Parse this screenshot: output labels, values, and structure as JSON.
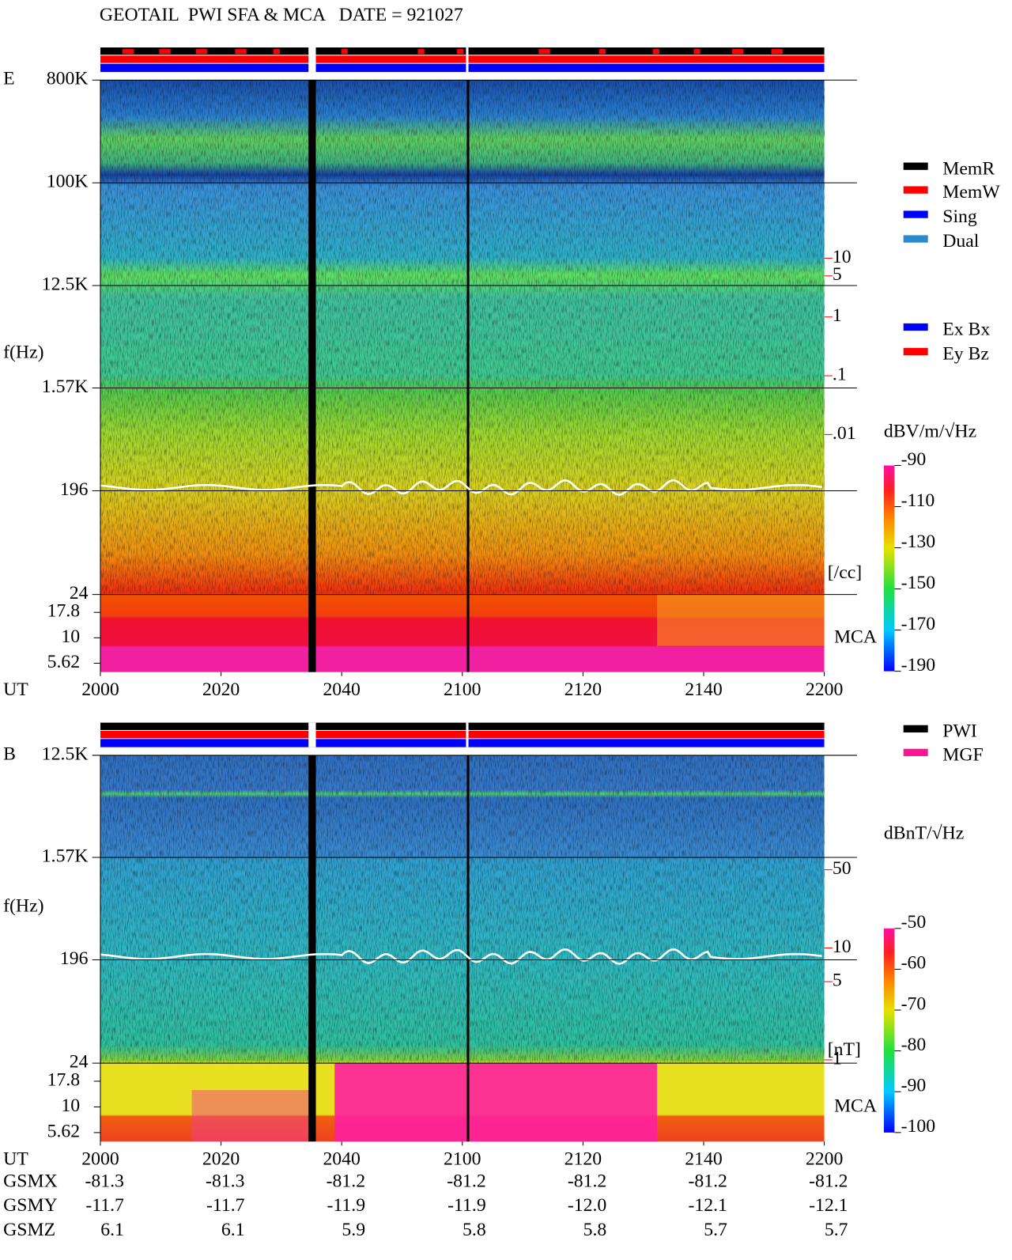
{
  "title": "GEOTAIL  PWI SFA & MCA   DATE = 921027",
  "chart_data": [
    {
      "type": "spectrogram",
      "panel": "E",
      "ylabel": "f(Hz)",
      "xlabel": "UT",
      "mca_label": "MCA",
      "ylog": true,
      "ylim": [
        24,
        800000
      ],
      "yticks": [
        {
          "value": 800000,
          "label": "800K"
        },
        {
          "value": 100000,
          "label": "100K"
        },
        {
          "value": 12500,
          "label": "12.5K"
        },
        {
          "value": 1570,
          "label": "1.57K"
        },
        196,
        24
      ],
      "mca_ylim": [
        4.6,
        26.7
      ],
      "mca_yticks": [
        17.8,
        10,
        5.62
      ],
      "xticks": [
        "2000",
        "2020",
        "2040",
        "2100",
        "2120",
        "2140",
        "2200"
      ],
      "y2lim": [
        1.9e-05,
        10700
      ],
      "y2ticks": [
        10,
        5,
        1,
        {
          "value": 0.1,
          "label": ".1"
        },
        {
          "value": 0.01,
          "label": ".01"
        }
      ],
      "y2label": "[/cc]",
      "y2color": "#ff0000",
      "clim": [
        -190,
        -90
      ],
      "cticks": [
        -90,
        -110,
        -130,
        -150,
        -170,
        -190
      ],
      "clabel": "dBV/m/√Hz",
      "legend": [
        {
          "name": "MemR",
          "color": "#000000"
        },
        {
          "name": "MemW",
          "color": "#ff0000"
        },
        {
          "name": "Sing",
          "color": "#0000ff"
        },
        {
          "name": "Dual",
          "color": "#2a8ad0"
        }
      ],
      "legend2": [
        {
          "name": "Ex Bx",
          "color": "#0000ff"
        },
        {
          "name": "Ey Bz",
          "color": "#ff0000"
        }
      ]
    },
    {
      "type": "spectrogram",
      "panel": "B",
      "ylabel": "f(Hz)",
      "xlabel": "UT",
      "mca_label": "MCA",
      "ylog": true,
      "ylim": [
        24,
        12500
      ],
      "yticks": [
        {
          "value": 12500,
          "label": "12.5K"
        },
        {
          "value": 1570,
          "label": "1.57K"
        },
        196,
        24
      ],
      "mca_ylim": [
        4.6,
        26.7
      ],
      "mca_yticks": [
        17.8,
        10,
        5.62
      ],
      "xticks": [
        "2000",
        "2020",
        "2040",
        "2100",
        "2120",
        "2140",
        "2200"
      ],
      "y2lim": [
        0.935,
        527
      ],
      "y2ticks": [
        50,
        10,
        5,
        1
      ],
      "y2label": "[nT]",
      "y2color": "#ff0000",
      "clim": [
        -100,
        -50
      ],
      "cticks": [
        -50,
        -60,
        -70,
        -80,
        -90,
        -100
      ],
      "clabel": "dBnT/√Hz",
      "legend": [
        {
          "name": "PWI",
          "color": "#000000"
        },
        {
          "name": "MGF",
          "color": "#ff1493"
        }
      ]
    }
  ],
  "ephemeris": {
    "rows": [
      {
        "label": "GSMX",
        "values": [
          "-81.3",
          "-81.3",
          "-81.2",
          "-81.2",
          "-81.2",
          "-81.2",
          "-81.2"
        ]
      },
      {
        "label": "GSMY",
        "values": [
          "-11.7",
          "-11.7",
          "-11.9",
          "-11.9",
          "-12.0",
          "-12.1",
          "-12.1"
        ]
      },
      {
        "label": "GSMZ",
        "values": [
          "6.1",
          "6.1",
          "5.9",
          "5.8",
          "5.8",
          "5.7",
          "5.7"
        ]
      }
    ]
  }
}
